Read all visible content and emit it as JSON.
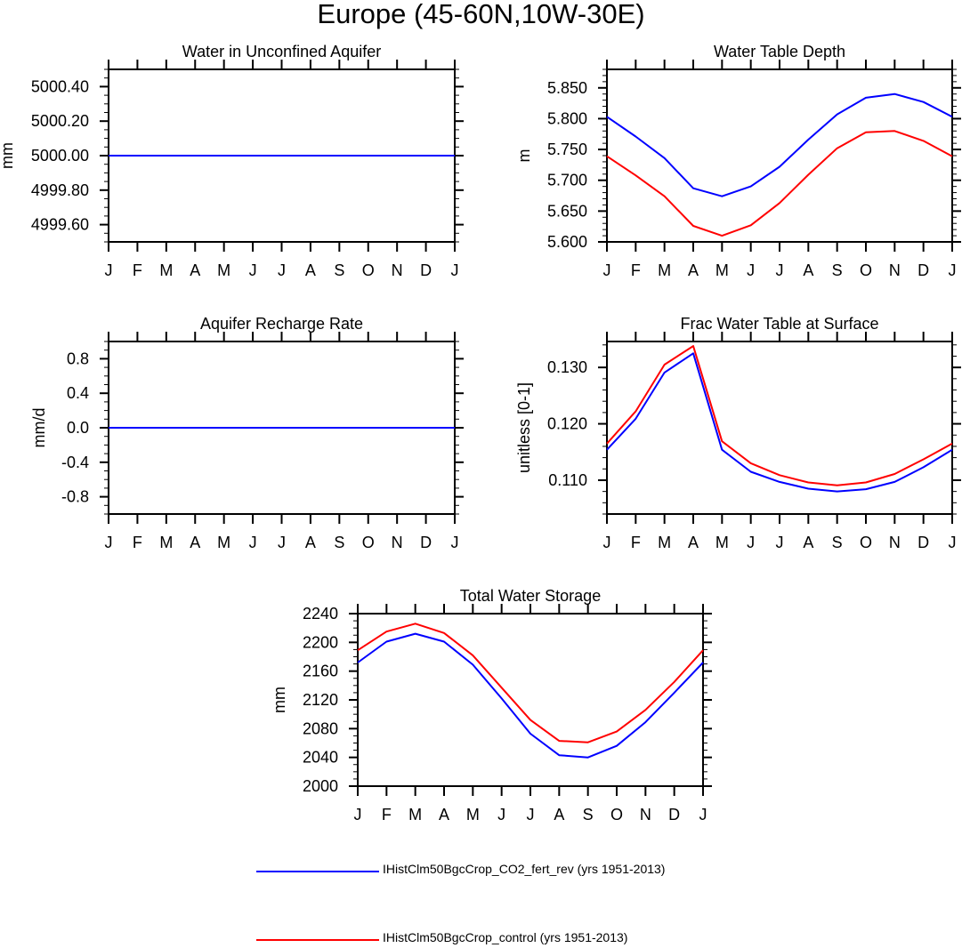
{
  "page_title": "Europe (45-60N,10W-30E)",
  "colors": {
    "series_1": "#0000ff",
    "series_2": "#ff0000",
    "axis": "#000000"
  },
  "legend": [
    {
      "label": "IHistClm50BgcCrop_CO2_fert_rev (yrs 1951-2013)",
      "color": "#0000ff"
    },
    {
      "label": "IHistClm50BgcCrop_control (yrs 1951-2013)",
      "color": "#ff0000"
    }
  ],
  "chart_data": [
    {
      "id": "aquifer",
      "type": "line",
      "title": "Water in Unconfined Aquifer",
      "ylabel": "mm",
      "xlabel": "",
      "categories": [
        "J",
        "F",
        "M",
        "A",
        "M",
        "J",
        "J",
        "A",
        "S",
        "O",
        "N",
        "D",
        "J"
      ],
      "ylim": [
        4999.5,
        5000.5
      ],
      "yticks": [
        4999.6,
        4999.8,
        5000.0,
        5000.2,
        5000.4
      ],
      "ytick_labels": [
        "4999.60",
        "4999.80",
        "5000.00",
        "5000.20",
        "5000.40"
      ],
      "yminor": 0.05,
      "grid": false,
      "series": [
        {
          "name": "IHistClm50BgcCrop_control (yrs 1951-2013)",
          "color": "#ff0000",
          "values": [
            5000,
            5000,
            5000,
            5000,
            5000,
            5000,
            5000,
            5000,
            5000,
            5000,
            5000,
            5000,
            5000
          ]
        },
        {
          "name": "IHistClm50BgcCrop_CO2_fert_rev (yrs 1951-2013)",
          "color": "#0000ff",
          "values": [
            5000,
            5000,
            5000,
            5000,
            5000,
            5000,
            5000,
            5000,
            5000,
            5000,
            5000,
            5000,
            5000
          ]
        }
      ]
    },
    {
      "id": "wtd",
      "type": "line",
      "title": "Water Table Depth",
      "ylabel": "m",
      "xlabel": "",
      "categories": [
        "J",
        "F",
        "M",
        "A",
        "M",
        "J",
        "J",
        "A",
        "S",
        "O",
        "N",
        "D",
        "J"
      ],
      "ylim": [
        5.6,
        5.88
      ],
      "yticks": [
        5.6,
        5.65,
        5.7,
        5.75,
        5.8,
        5.85
      ],
      "ytick_labels": [
        "5.600",
        "5.650",
        "5.700",
        "5.750",
        "5.800",
        "5.850"
      ],
      "yminor": 0.01,
      "grid": false,
      "series": [
        {
          "name": "IHistClm50BgcCrop_CO2_fert_rev (yrs 1951-2013)",
          "color": "#0000ff",
          "values": [
            5.803,
            5.771,
            5.736,
            5.687,
            5.674,
            5.69,
            5.722,
            5.766,
            5.807,
            5.834,
            5.84,
            5.827,
            5.803
          ]
        },
        {
          "name": "IHistClm50BgcCrop_control (yrs 1951-2013)",
          "color": "#ff0000",
          "values": [
            5.739,
            5.708,
            5.674,
            5.626,
            5.61,
            5.627,
            5.663,
            5.709,
            5.752,
            5.778,
            5.78,
            5.764,
            5.739
          ]
        }
      ]
    },
    {
      "id": "recharge",
      "type": "line",
      "title": "Aquifer Recharge Rate",
      "ylabel": "mm/d",
      "xlabel": "",
      "categories": [
        "J",
        "F",
        "M",
        "A",
        "M",
        "J",
        "J",
        "A",
        "S",
        "O",
        "N",
        "D",
        "J"
      ],
      "ylim": [
        -1.0,
        1.0
      ],
      "yticks": [
        -0.8,
        -0.4,
        0.0,
        0.4,
        0.8
      ],
      "ytick_labels": [
        "-0.8",
        "-0.4",
        "0.0",
        "0.4",
        "0.8"
      ],
      "yminor": 0.1,
      "grid": false,
      "series": [
        {
          "name": "IHistClm50BgcCrop_control (yrs 1951-2013)",
          "color": "#ff0000",
          "values": [
            0,
            0,
            0,
            0,
            0,
            0,
            0,
            0,
            0,
            0,
            0,
            0,
            0
          ]
        },
        {
          "name": "IHistClm50BgcCrop_CO2_fert_rev (yrs 1951-2013)",
          "color": "#0000ff",
          "values": [
            0,
            0,
            0,
            0,
            0,
            0,
            0,
            0,
            0,
            0,
            0,
            0,
            0
          ]
        }
      ]
    },
    {
      "id": "fwts",
      "type": "line",
      "title": "Frac Water Table at Surface",
      "ylabel": "unitless [0-1]",
      "xlabel": "",
      "categories": [
        "J",
        "F",
        "M",
        "A",
        "M",
        "J",
        "J",
        "A",
        "S",
        "O",
        "N",
        "D",
        "J"
      ],
      "ylim": [
        0.104,
        0.1346
      ],
      "yticks": [
        0.11,
        0.12,
        0.13
      ],
      "ytick_labels": [
        "0.110",
        "0.120",
        "0.130"
      ],
      "yminor": 0.002,
      "grid": false,
      "series": [
        {
          "name": "IHistClm50BgcCrop_CO2_fert_rev (yrs 1951-2013)",
          "color": "#0000ff",
          "values": [
            0.1154,
            0.1209,
            0.1291,
            0.1325,
            0.1154,
            0.1115,
            0.1097,
            0.1085,
            0.108,
            0.1084,
            0.1097,
            0.1123,
            0.1154
          ]
        },
        {
          "name": "IHistClm50BgcCrop_control (yrs 1951-2013)",
          "color": "#ff0000",
          "values": [
            0.1165,
            0.1222,
            0.1305,
            0.1338,
            0.1169,
            0.113,
            0.1109,
            0.1096,
            0.1091,
            0.1096,
            0.1111,
            0.1137,
            0.1165
          ]
        }
      ]
    },
    {
      "id": "tws",
      "type": "line",
      "title": "Total Water Storage",
      "ylabel": "mm",
      "xlabel": "",
      "categories": [
        "J",
        "F",
        "M",
        "A",
        "M",
        "J",
        "J",
        "A",
        "S",
        "O",
        "N",
        "D",
        "J"
      ],
      "ylim": [
        2000,
        2240
      ],
      "yticks": [
        2000,
        2040,
        2080,
        2120,
        2160,
        2200,
        2240
      ],
      "ytick_labels": [
        "2000",
        "2040",
        "2080",
        "2120",
        "2160",
        "2200",
        "2240"
      ],
      "yminor": 10,
      "grid": false,
      "series": [
        {
          "name": "IHistClm50BgcCrop_CO2_fert_rev (yrs 1951-2013)",
          "color": "#0000ff",
          "values": [
            2172,
            2201,
            2212,
            2201,
            2169,
            2122,
            2073,
            2043,
            2040,
            2056,
            2089,
            2130,
            2172
          ]
        },
        {
          "name": "IHistClm50BgcCrop_control (yrs 1951-2013)",
          "color": "#ff0000",
          "values": [
            2189,
            2215,
            2226,
            2213,
            2182,
            2137,
            2092,
            2063,
            2061,
            2076,
            2106,
            2145,
            2189
          ]
        }
      ]
    }
  ]
}
